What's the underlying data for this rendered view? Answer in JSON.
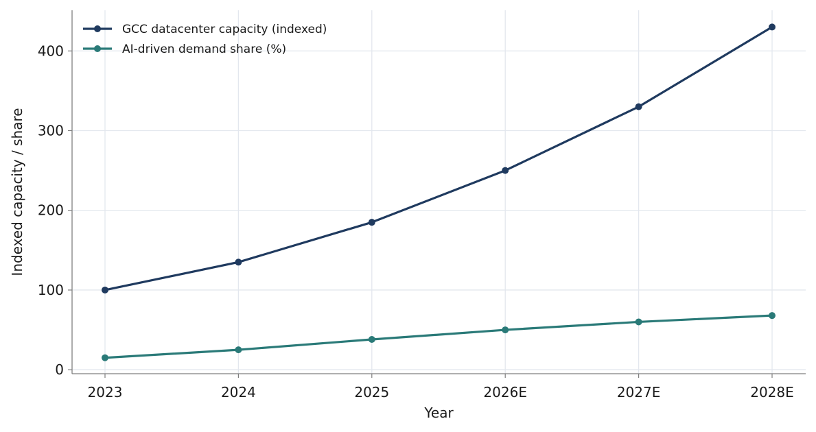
{
  "chart_data": {
    "type": "line",
    "categories": [
      "2023",
      "2024",
      "2025",
      "2026E",
      "2027E",
      "2028E"
    ],
    "series": [
      {
        "name": "GCC datacenter capacity (indexed)",
        "values": [
          100,
          135,
          185,
          250,
          330,
          430
        ],
        "color": "#1f3a5f"
      },
      {
        "name": "AI-driven demand share (%)",
        "values": [
          15,
          25,
          38,
          50,
          60,
          68
        ],
        "color": "#2a7a78"
      }
    ],
    "xlabel": "Year",
    "ylabel": "Indexed capacity / share",
    "ylim": [
      -5,
      451
    ],
    "yticks": [
      0,
      100,
      200,
      300,
      400
    ],
    "grid": true,
    "legend_position": "top-left",
    "grid_color": "#e3e7ee",
    "axis_color": "#7f7f7f"
  }
}
